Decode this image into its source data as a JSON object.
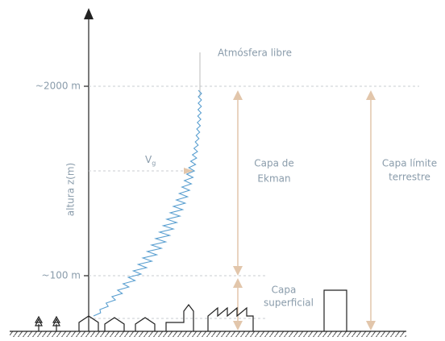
{
  "labels": {
    "free_atmosphere": "Atmósfera libre",
    "height_2000": "~2000 m",
    "height_100": "~100 m",
    "axis": "altura z(m)",
    "geostrophic": "V",
    "geostrophic_sub": "g",
    "ekman": [
      "Capa de",
      "Ekman"
    ],
    "boundary": [
      "Capa límite",
      "terrestre"
    ],
    "surface": [
      "Capa",
      "superficial"
    ]
  }
}
